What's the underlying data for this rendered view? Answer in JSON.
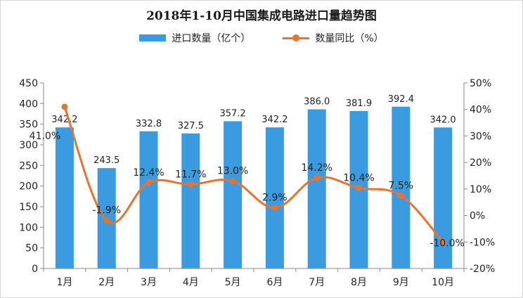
{
  "title": "2018年1-10月中国集成电路进口量趋势图",
  "legend": {
    "bar_label": "进口数量（亿个）",
    "line_label": "数量同比（%）"
  },
  "colors": {
    "bar": "#3a9be0",
    "line": "#e8732c",
    "axis": "#888888",
    "text": "#222222"
  },
  "chart_data": {
    "type": "bar",
    "categories": [
      "1月",
      "2月",
      "3月",
      "4月",
      "5月",
      "6月",
      "7月",
      "8月",
      "9月",
      "10月"
    ],
    "series": [
      {
        "name": "进口数量（亿个）",
        "type": "bar",
        "axis": "left",
        "values": [
          342.2,
          243.5,
          332.8,
          327.5,
          357.2,
          342.2,
          386.0,
          381.9,
          392.4,
          342.0
        ],
        "labels": [
          "342.2",
          "243.5",
          "332.8",
          "327.5",
          "357.2",
          "342.2",
          "386.0",
          "381.9",
          "392.4",
          "342.0"
        ]
      },
      {
        "name": "数量同比（%）",
        "type": "line",
        "axis": "right",
        "values": [
          41.0,
          -1.9,
          12.4,
          11.7,
          13.0,
          2.9,
          14.2,
          10.4,
          7.5,
          -10.0
        ],
        "labels": [
          "41.0%",
          "-1.9%",
          "12.4%",
          "11.7%",
          "13.0%",
          "2.9%",
          "14.2%",
          "10.4%",
          "7.5%",
          "-10.0%"
        ]
      }
    ],
    "y_left": {
      "ylim": [
        0,
        450
      ],
      "ticks": [
        0,
        50,
        100,
        150,
        200,
        250,
        300,
        350,
        400,
        450
      ],
      "tick_labels": [
        "0",
        "50",
        "100",
        "150",
        "200",
        "250",
        "300",
        "350",
        "400",
        "450"
      ]
    },
    "y_right": {
      "ylim": [
        -20,
        50
      ],
      "ticks": [
        -20,
        -10,
        0,
        10,
        20,
        30,
        40,
        50
      ],
      "tick_labels": [
        "-20%",
        "-10%",
        "0%",
        "10%",
        "20%",
        "30%",
        "40%",
        "50%"
      ]
    },
    "grid": false,
    "legend_position": "top"
  }
}
